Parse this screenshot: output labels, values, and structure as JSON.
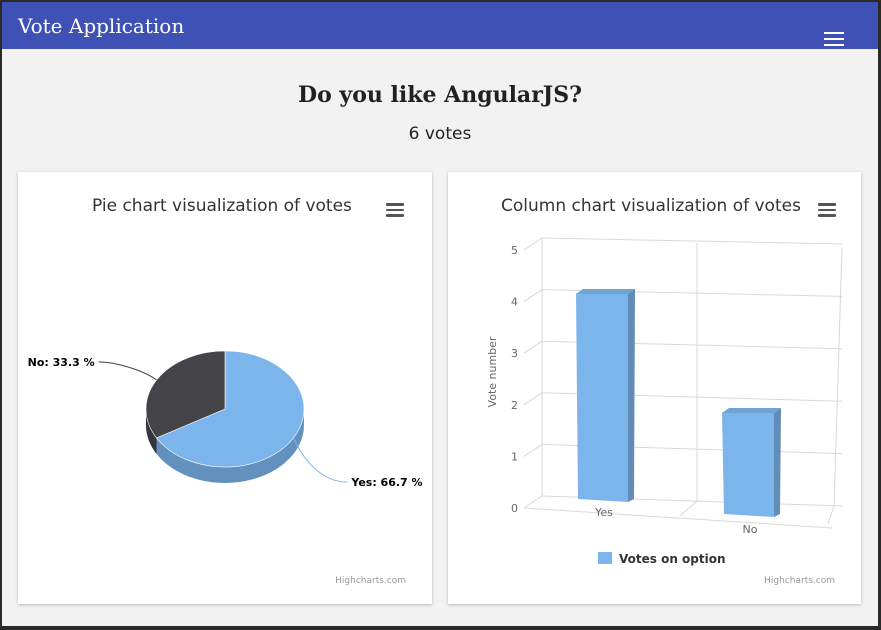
{
  "app": {
    "title": "Vote Application",
    "menu_icon": "hamburger-menu-icon"
  },
  "poll": {
    "question": "Do you like AngularJS?",
    "votes_text": "6 votes"
  },
  "pie_card": {
    "title": "Pie chart visualization of votes",
    "menu_icon": "hamburger-menu-icon",
    "credits": "Highcharts.com"
  },
  "column_card": {
    "title": "Column chart visualization of votes",
    "menu_icon": "hamburger-menu-icon",
    "credits": "Highcharts.com"
  },
  "colors": {
    "appbar": "#3f51b5",
    "yes": "#7cb5ec",
    "no": "#434348"
  },
  "chart_data": [
    {
      "type": "pie",
      "title": "Pie chart visualization of votes",
      "slices": [
        {
          "name": "Yes",
          "value": 66.7,
          "label": "Yes: 66.7 %"
        },
        {
          "name": "No",
          "value": 33.3,
          "label": "No: 33.3 %"
        }
      ]
    },
    {
      "type": "bar",
      "title": "Column chart visualization of votes",
      "categories": [
        "Yes",
        "No"
      ],
      "series": [
        {
          "name": "Votes on option",
          "values": [
            4,
            2
          ]
        }
      ],
      "ylabel": "Vote number",
      "ylim": [
        0,
        5
      ],
      "yticks": [
        "0",
        "1",
        "2",
        "3",
        "4",
        "5"
      ],
      "legend": "bottom-center",
      "grid": true
    }
  ]
}
